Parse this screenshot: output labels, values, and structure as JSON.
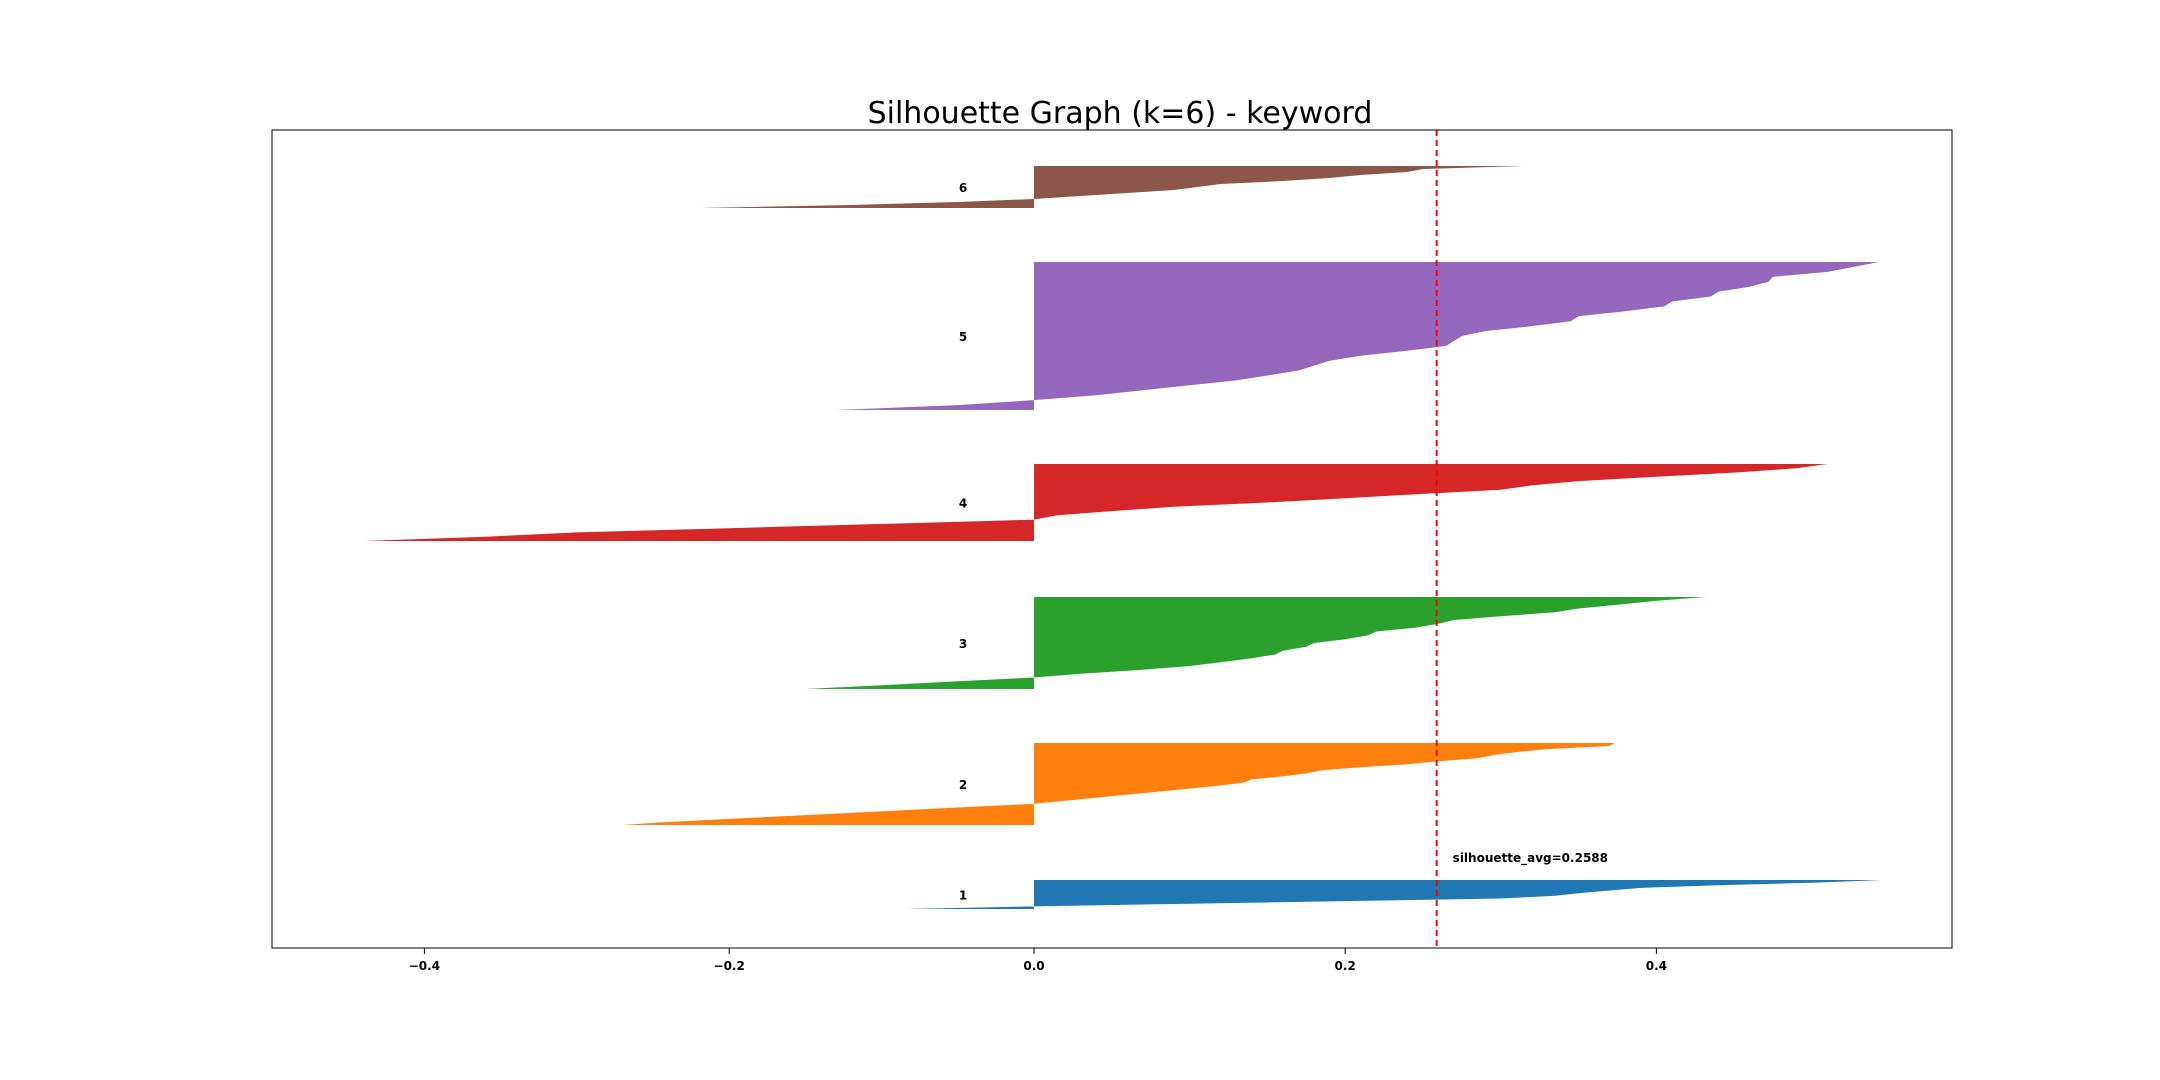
{
  "chart_data": {
    "type": "area",
    "title": "Silhouette Graph (k=6) - keyword",
    "xlabel": "",
    "ylabel": "",
    "xlim": [
      -0.5,
      0.59
    ],
    "xticks": [
      -0.4,
      -0.2,
      0.0,
      0.2,
      0.4
    ],
    "xtick_labels": [
      "−0.4",
      "−0.2",
      "0.0",
      "0.2",
      "0.4"
    ],
    "grid": false,
    "silhouette_avg": 0.2588,
    "avg_label": "silhouette_avg=0.2588",
    "clusters": [
      {
        "label": "1",
        "color": "#1f77b4",
        "n_samples": 12,
        "values": [
          0.545,
          0.503,
          0.44,
          0.39,
          0.37,
          0.35,
          0.335,
          0.3,
          0.2,
          0.1,
          0.0,
          -0.085
        ]
      },
      {
        "label": "2",
        "color": "#ff7f0e",
        "n_samples": 30,
        "values": [
          0.373,
          0.37,
          0.33,
          0.31,
          0.295,
          0.285,
          0.26,
          0.24,
          0.21,
          0.185,
          0.175,
          0.16,
          0.14,
          0.135,
          0.12,
          0.1,
          0.08,
          0.06,
          0.04,
          0.02,
          0.0,
          -0.04,
          -0.08,
          -0.12,
          -0.16,
          -0.2,
          -0.24,
          -0.27
        ]
      },
      {
        "label": "3",
        "color": "#2ca02c",
        "n_samples": 30,
        "values": [
          0.432,
          0.4,
          0.375,
          0.35,
          0.335,
          0.3,
          0.27,
          0.26,
          0.245,
          0.22,
          0.215,
          0.2,
          0.18,
          0.175,
          0.16,
          0.155,
          0.14,
          0.12,
          0.1,
          0.07,
          0.03,
          0.0,
          -0.05,
          -0.1,
          -0.15
        ]
      },
      {
        "label": "4",
        "color": "#d62728",
        "n_samples": 28,
        "values": [
          0.51,
          0.49,
          0.45,
          0.4,
          0.35,
          0.32,
          0.3,
          0.25,
          0.2,
          0.15,
          0.09,
          0.05,
          0.015,
          0.0,
          -0.1,
          -0.2,
          -0.3,
          -0.36,
          -0.44
        ]
      },
      {
        "label": "5",
        "color": "#9467bd",
        "n_samples": 55,
        "values": [
          0.543,
          0.527,
          0.51,
          0.475,
          0.472,
          0.46,
          0.44,
          0.435,
          0.41,
          0.405,
          0.38,
          0.35,
          0.345,
          0.32,
          0.29,
          0.275,
          0.27,
          0.265,
          0.24,
          0.21,
          0.19,
          0.18,
          0.17,
          0.15,
          0.13,
          0.1,
          0.07,
          0.04,
          0.0,
          -0.05,
          -0.13
        ]
      },
      {
        "label": "6",
        "color": "#8c564b",
        "n_samples": 16,
        "values": [
          0.316,
          0.25,
          0.24,
          0.21,
          0.19,
          0.16,
          0.12,
          0.105,
          0.09,
          0.06,
          0.03,
          0.0,
          -0.05,
          -0.12,
          -0.22
        ]
      }
    ]
  }
}
